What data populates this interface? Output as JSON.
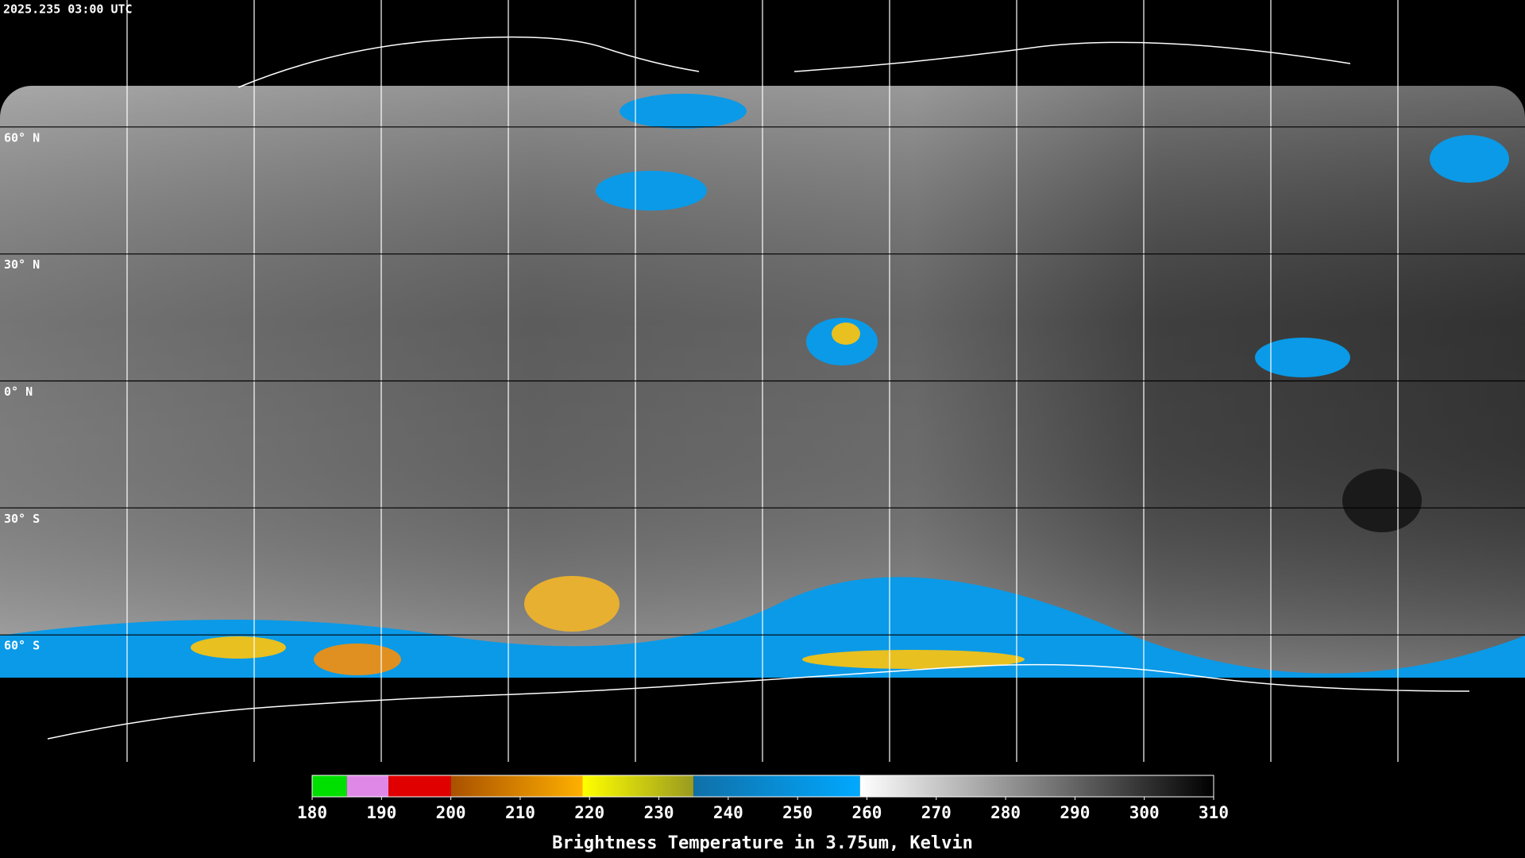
{
  "timestamp": "2025.235 03:00 UTC",
  "lat_labels": [
    "60° N",
    "30° N",
    "0° N",
    "30° S",
    "60° S"
  ],
  "colorbar": {
    "title": "Brightness Temperature in 3.75um, Kelvin",
    "range": [
      180,
      310
    ],
    "ticks": [
      180,
      190,
      200,
      210,
      220,
      230,
      240,
      250,
      260,
      270,
      280,
      290,
      300,
      310
    ],
    "segments": [
      {
        "from": 180,
        "to": 185,
        "color_from": "#00e000",
        "color_to": "#00e000"
      },
      {
        "from": 185,
        "to": 191,
        "color_from": "#e088e8",
        "color_to": "#e088e8"
      },
      {
        "from": 191,
        "to": 200,
        "color_from": "#e00000",
        "color_to": "#e00000"
      },
      {
        "from": 200,
        "to": 219,
        "color_from": "#a85000",
        "color_to": "#ffb000"
      },
      {
        "from": 219,
        "to": 235,
        "color_from": "#ffff00",
        "color_to": "#9a9a20"
      },
      {
        "from": 235,
        "to": 259,
        "color_from": "#1070a8",
        "color_to": "#00a8ff"
      },
      {
        "from": 259,
        "to": 310,
        "color_from": "#ffffff",
        "color_to": "#000000"
      }
    ]
  }
}
